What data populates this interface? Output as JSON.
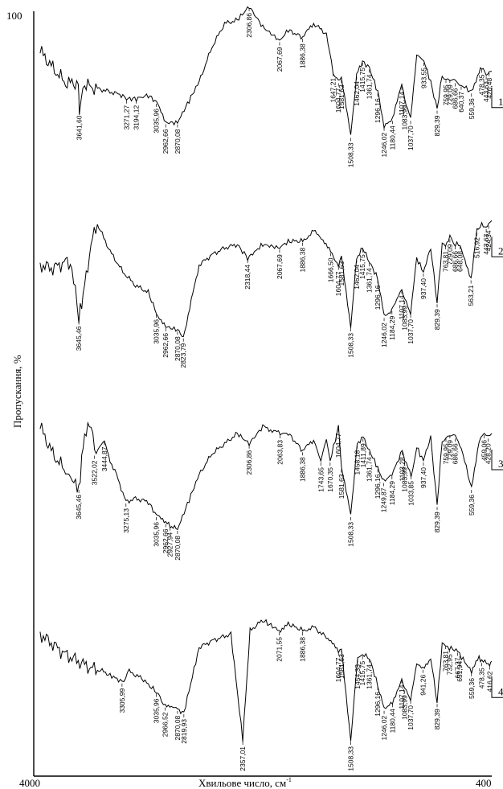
{
  "chart_data": {
    "type": "line",
    "title": "",
    "xlabel": "Хвильове число, см",
    "xlabel_sup": "-1",
    "ylabel": "Пропускання, %",
    "y_top_tick": "100",
    "xlim": [
      4000,
      400
    ],
    "x_tick_left": "4000",
    "x_tick_right": "400",
    "grid": false,
    "legend": "",
    "series": [
      {
        "name": "1",
        "curve": [
          [
            3950,
            0.55
          ],
          [
            3850,
            0.3
          ],
          [
            3750,
            0.08
          ],
          [
            3650,
            0.08
          ],
          [
            3641.6,
            -0.3
          ],
          [
            3600,
            0.05
          ],
          [
            3500,
            0.0
          ],
          [
            3400,
            -0.05
          ],
          [
            3300,
            -0.1
          ],
          [
            3271.27,
            -0.15
          ],
          [
            3194.12,
            -0.15
          ],
          [
            3100,
            -0.1
          ],
          [
            3035.96,
            -0.2
          ],
          [
            2962.66,
            -0.5
          ],
          [
            2870.08,
            -0.5
          ],
          [
            2700,
            0.1
          ],
          [
            2600,
            0.6
          ],
          [
            2500,
            0.95
          ],
          [
            2400,
            1.0
          ],
          [
            2306.86,
            1.2
          ],
          [
            2200,
            0.9
          ],
          [
            2067.69,
            0.7
          ],
          [
            2000,
            0.85
          ],
          [
            1886.38,
            0.75
          ],
          [
            1800,
            0.95
          ],
          [
            1700,
            0.8
          ],
          [
            1647.21,
            0.25
          ],
          [
            1604.77,
            0.1
          ],
          [
            1581.63,
            0.15
          ],
          [
            1508.33,
            -0.7
          ],
          [
            1462.04,
            0.2
          ],
          [
            1415.75,
            0.4
          ],
          [
            1361.74,
            0.3
          ],
          [
            1296.16,
            -0.05
          ],
          [
            1246.02,
            -0.55
          ],
          [
            1180.44,
            -0.45
          ],
          [
            1107.14,
            0.05
          ],
          [
            1083.99,
            -0.15
          ],
          [
            1037.7,
            -0.45
          ],
          [
            990,
            0.5
          ],
          [
            933.55,
            0.4
          ],
          [
            880,
            0.1
          ],
          [
            829.39,
            -0.3
          ],
          [
            790,
            0.2
          ],
          [
            759.95,
            0.15
          ],
          [
            729.09,
            0.15
          ],
          [
            686.66,
            0.1
          ],
          [
            640.37,
            0.05
          ],
          [
            559.36,
            -0.05
          ],
          [
            500,
            0.25
          ],
          [
            478.35,
            0.3
          ],
          [
            443.63,
            0.2
          ],
          [
            420.48,
            0.25
          ],
          [
            400,
            0.25
          ]
        ],
        "peaks": [
          "3641,60",
          "3271,27",
          "3194,12",
          "3035,96",
          "2962,66",
          "2870,08",
          "2306,86",
          "2067,69",
          "1886,38",
          "1647,21",
          "1604,77",
          "1581,63",
          "1508,33",
          "1462,04",
          "1415,75",
          "1361,74",
          "1296,16",
          "1246,02",
          "1180,44",
          "1107,14",
          "1083,99",
          "1037,70",
          "933,55",
          "829,39",
          "759,95",
          "729,09",
          "686,66",
          "640,37",
          "559,36",
          "478,35",
          "443,63",
          "420,48"
        ]
      },
      {
        "name": "2",
        "curve": [
          [
            3950,
            0.3
          ],
          [
            3850,
            0.25
          ],
          [
            3750,
            0.35
          ],
          [
            3700,
            0.3
          ],
          [
            3645.46,
            -0.5
          ],
          [
            3600,
            0.0
          ],
          [
            3550,
            0.6
          ],
          [
            3500,
            0.9
          ],
          [
            3400,
            0.5
          ],
          [
            3300,
            0.2
          ],
          [
            3200,
            0.0
          ],
          [
            3100,
            -0.1
          ],
          [
            3035.96,
            -0.4
          ],
          [
            2962.66,
            -0.6
          ],
          [
            2870.08,
            -0.65
          ],
          [
            2823.79,
            -0.75
          ],
          [
            2700,
            0.3
          ],
          [
            2600,
            0.45
          ],
          [
            2500,
            0.55
          ],
          [
            2400,
            0.6
          ],
          [
            2318.44,
            0.4
          ],
          [
            2200,
            0.6
          ],
          [
            2067.69,
            0.55
          ],
          [
            2000,
            0.65
          ],
          [
            1886.38,
            0.65
          ],
          [
            1800,
            0.8
          ],
          [
            1666.5,
            0.5
          ],
          [
            1604.77,
            0.3
          ],
          [
            1581.63,
            0.45
          ],
          [
            1508.33,
            -0.6
          ],
          [
            1462.04,
            0.4
          ],
          [
            1415.75,
            0.55
          ],
          [
            1361.74,
            0.35
          ],
          [
            1296.16,
            0.1
          ],
          [
            1246.02,
            -0.45
          ],
          [
            1184.29,
            -0.35
          ],
          [
            1107.14,
            -0.05
          ],
          [
            1083.99,
            -0.2
          ],
          [
            1037.7,
            -0.4
          ],
          [
            990,
            0.4
          ],
          [
            937.4,
            0.2
          ],
          [
            880,
            0.55
          ],
          [
            829.39,
            -0.25
          ],
          [
            790,
            0.6
          ],
          [
            763.81,
            0.6
          ],
          [
            729.09,
            0.7
          ],
          [
            686.66,
            0.6
          ],
          [
            648.08,
            0.6
          ],
          [
            563.21,
            0.1
          ],
          [
            516.92,
            0.8
          ],
          [
            478.35,
            0.9
          ],
          [
            443.63,
            0.85
          ],
          [
            424.34,
            0.9
          ],
          [
            400,
            0.95
          ]
        ],
        "peaks": [
          "3645,46",
          "3035,96",
          "2962,66",
          "2870,08",
          "2823,79",
          "2318,44",
          "2067,69",
          "1886,38",
          "1666,50",
          "1604,77",
          "1581,63",
          "1508,33",
          "1462,04",
          "1415,75",
          "1361,74",
          "1296,16",
          "1246,02",
          "1184,29",
          "1107,14",
          "1083,99",
          "1037,70",
          "937,40",
          "829,39",
          "763,81",
          "729,09",
          "686,66",
          "648,08",
          "563,21",
          "516,92",
          "443,63",
          "424,34"
        ]
      },
      {
        "name": "3",
        "curve": [
          [
            3950,
            0.7
          ],
          [
            3850,
            0.3
          ],
          [
            3750,
            0.05
          ],
          [
            3645.46,
            -0.2
          ],
          [
            3600,
            0.6
          ],
          [
            3550,
            0.7
          ],
          [
            3522.02,
            0.3
          ],
          [
            3444.87,
            0.5
          ],
          [
            3400,
            0.2
          ],
          [
            3350,
            0.0
          ],
          [
            3275.13,
            -0.4
          ],
          [
            3200,
            -0.35
          ],
          [
            3100,
            -0.4
          ],
          [
            3035.96,
            -0.6
          ],
          [
            2962.66,
            -0.7
          ],
          [
            2927.94,
            -0.75
          ],
          [
            2870.08,
            -0.8
          ],
          [
            2700,
            0.0
          ],
          [
            2600,
            0.3
          ],
          [
            2500,
            0.45
          ],
          [
            2400,
            0.6
          ],
          [
            2306.86,
            0.45
          ],
          [
            2200,
            0.7
          ],
          [
            2063.83,
            0.6
          ],
          [
            2000,
            0.6
          ],
          [
            1886.38,
            0.35
          ],
          [
            1800,
            0.5
          ],
          [
            1743.65,
            0.2
          ],
          [
            1700,
            0.5
          ],
          [
            1670.35,
            0.2
          ],
          [
            1604.77,
            0.7
          ],
          [
            1581.63,
            0.1
          ],
          [
            1508.33,
            -0.6
          ],
          [
            1458.18,
            0.45
          ],
          [
            1411.89,
            0.55
          ],
          [
            1361.74,
            0.35
          ],
          [
            1296.16,
            0.1
          ],
          [
            1249.87,
            -0.1
          ],
          [
            1184.29,
            0.0
          ],
          [
            1103.28,
            0.35
          ],
          [
            1083.99,
            0.2
          ],
          [
            1033.85,
            0.0
          ],
          [
            990,
            0.4
          ],
          [
            937.4,
            0.2
          ],
          [
            880,
            0.55
          ],
          [
            829.39,
            -0.45
          ],
          [
            790,
            0.5
          ],
          [
            759.95,
            0.55
          ],
          [
            729.09,
            0.6
          ],
          [
            686.66,
            0.55
          ],
          [
            640,
            0.4
          ],
          [
            559.36,
            -0.2
          ],
          [
            500,
            0.5
          ],
          [
            459.06,
            0.6
          ],
          [
            428.2,
            0.55
          ],
          [
            400,
            0.6
          ]
        ],
        "peaks": [
          "3645,46",
          "3522,02",
          "3444,87",
          "3275,13",
          "3035,96",
          "2962,66",
          "2927,94",
          "2870,08",
          "2306,86",
          "2063,83",
          "1886,38",
          "1743,65",
          "1670,35",
          "1604,77",
          "1581,63",
          "1508,33",
          "1458,18",
          "1411,89",
          "1361,74",
          "1296,16",
          "1249,87",
          "1184,29",
          "1103,28",
          "1083,99",
          "1033,85",
          "937,40",
          "829,39",
          "759,95",
          "729,09",
          "686,66",
          "559,36",
          "459,06",
          "428,20"
        ]
      },
      {
        "name": "4",
        "curve": [
          [
            3950,
            0.55
          ],
          [
            3850,
            0.4
          ],
          [
            3750,
            0.25
          ],
          [
            3650,
            0.15
          ],
          [
            3550,
            0.05
          ],
          [
            3450,
            0.0
          ],
          [
            3400,
            -0.05
          ],
          [
            3305.99,
            -0.15
          ],
          [
            3250,
            0.0
          ],
          [
            3150,
            -0.1
          ],
          [
            3035.96,
            -0.3
          ],
          [
            2966.52,
            -0.5
          ],
          [
            2870.08,
            -0.55
          ],
          [
            2819.93,
            -0.6
          ],
          [
            2700,
            0.35
          ],
          [
            2600,
            0.45
          ],
          [
            2450,
            0.55
          ],
          [
            2357.01,
            -1.0
          ],
          [
            2300,
            0.6
          ],
          [
            2200,
            0.75
          ],
          [
            2071.55,
            0.6
          ],
          [
            2000,
            0.7
          ],
          [
            1886.38,
            0.6
          ],
          [
            1800,
            0.65
          ],
          [
            1700,
            0.5
          ],
          [
            1604.77,
            0.3
          ],
          [
            1581.63,
            0.35
          ],
          [
            1508.33,
            -1.0
          ],
          [
            1454.33,
            0.2
          ],
          [
            1415.75,
            0.25
          ],
          [
            1361.74,
            0.2
          ],
          [
            1296.16,
            -0.2
          ],
          [
            1246.02,
            -0.55
          ],
          [
            1180.44,
            -0.45
          ],
          [
            1107.14,
            -0.1
          ],
          [
            1083.99,
            -0.25
          ],
          [
            1037.7,
            -0.4
          ],
          [
            990,
            0.1
          ],
          [
            941.26,
            0.05
          ],
          [
            880,
            0.2
          ],
          [
            829.39,
            -0.45
          ],
          [
            790,
            0.4
          ],
          [
            763.81,
            0.4
          ],
          [
            732.95,
            0.35
          ],
          [
            667.37,
            0.3
          ],
          [
            651.94,
            0.25
          ],
          [
            559.36,
            0.0
          ],
          [
            500,
            0.2
          ],
          [
            478.35,
            0.15
          ],
          [
            416.62,
            0.1
          ],
          [
            400,
            0.15
          ]
        ],
        "peaks": [
          "3305,99",
          "3035,96",
          "2966,52",
          "2870,08",
          "2819,93",
          "2357,01",
          "2071,55",
          "1886,38",
          "1604,77",
          "1581,63",
          "1508,33",
          "1454,33",
          "1415,75",
          "1361,74",
          "1296,16",
          "1246,02",
          "1180,44",
          "1107,14",
          "1083,99",
          "1037,70",
          "941,26",
          "829,39",
          "763,81",
          "732,95",
          "667,37",
          "651,94",
          "559,36",
          "478,35",
          "416,62"
        ]
      }
    ]
  }
}
